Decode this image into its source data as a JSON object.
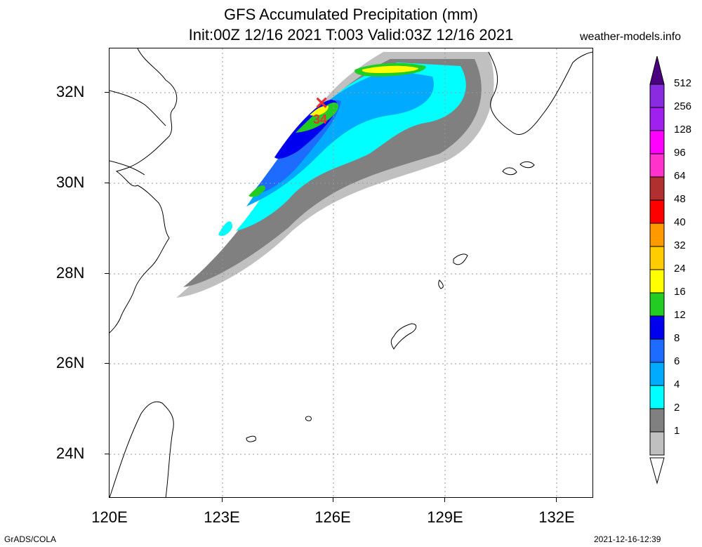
{
  "header": {
    "title_line1": "GFS Accumulated Precipitation (mm)",
    "title_line2": "Init:00Z 12/16 2021 T:003 Valid:03Z 12/16 2021",
    "site": "weather-models.info"
  },
  "axes": {
    "lat_labels": [
      "32N",
      "30N",
      "28N",
      "26N",
      "24N"
    ],
    "lon_labels": [
      "120E",
      "123E",
      "126E",
      "129E",
      "132E"
    ]
  },
  "colorbar": {
    "labels": [
      "512",
      "256",
      "128",
      "96",
      "64",
      "48",
      "40",
      "32",
      "24",
      "16",
      "12",
      "8",
      "6",
      "4",
      "2",
      "1"
    ],
    "colors": [
      "#8a2be2",
      "#a020f0",
      "#ff00ff",
      "#ff33cc",
      "#b03030",
      "#ff0000",
      "#ff9900",
      "#ffcc00",
      "#ffff00",
      "#22cc22",
      "#0000ee",
      "#1e6cff",
      "#00aaff",
      "#00ffff",
      "#808080",
      "#c0c0c0"
    ],
    "top_cap_color": "#4b0082",
    "bottom_cap_color": "#ffffff"
  },
  "max_marker": {
    "symbol": "✕",
    "value": "34",
    "color": "#e83030"
  },
  "footer": {
    "software": "GrADS/COLA",
    "timestamp": "2021-12-16-12:39"
  }
}
